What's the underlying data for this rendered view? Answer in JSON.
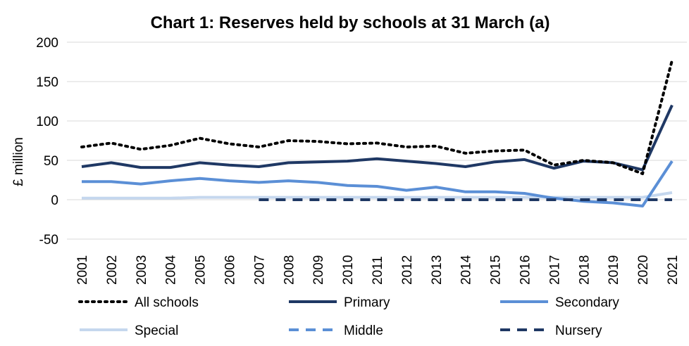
{
  "chart_data": {
    "type": "line",
    "title": "Chart 1: Reserves held by schools at 31 March (a)",
    "xlabel": "",
    "ylabel": "£ million",
    "ylim": [
      -50,
      200
    ],
    "yticks": [
      -50,
      0,
      50,
      100,
      150,
      200
    ],
    "grid": true,
    "legend_position": "bottom",
    "categories": [
      "2001",
      "2002",
      "2003",
      "2004",
      "2005",
      "2006",
      "2007",
      "2008",
      "2009",
      "2010",
      "2011",
      "2012",
      "2013",
      "2014",
      "2015",
      "2016",
      "2017",
      "2018",
      "2019",
      "2020",
      "2021"
    ],
    "series": [
      {
        "name": "All schools",
        "color": "#000000",
        "style": "dotted",
        "values": [
          67,
          72,
          64,
          69,
          78,
          71,
          67,
          75,
          74,
          71,
          72,
          67,
          68,
          59,
          62,
          63,
          44,
          50,
          47,
          33,
          177
        ]
      },
      {
        "name": "Primary",
        "color": "#1f3864",
        "style": "solid",
        "values": [
          42,
          47,
          41,
          41,
          47,
          44,
          42,
          47,
          48,
          49,
          52,
          49,
          46,
          42,
          48,
          51,
          40,
          49,
          47,
          38,
          120
        ]
      },
      {
        "name": "Secondary",
        "color": "#5b8fd6",
        "style": "solid",
        "values": [
          23,
          23,
          20,
          24,
          27,
          24,
          22,
          24,
          22,
          18,
          17,
          12,
          16,
          10,
          10,
          8,
          2,
          -2,
          -4,
          -8,
          49
        ]
      },
      {
        "name": "Special",
        "color": "#c5d7ee",
        "style": "solid",
        "values": [
          2,
          2,
          2,
          2,
          3,
          3,
          3,
          3,
          3,
          3,
          3,
          3,
          3,
          3,
          3,
          3,
          3,
          3,
          3,
          3,
          9
        ]
      },
      {
        "name": "Middle",
        "color": "#5b8fd6",
        "style": "dashed",
        "values": [
          null,
          null,
          null,
          null,
          null,
          null,
          null,
          null,
          null,
          null,
          null,
          null,
          null,
          null,
          null,
          null,
          null,
          null,
          null,
          null,
          null
        ]
      },
      {
        "name": "Nursery",
        "color": "#1f3864",
        "style": "dashed",
        "values": [
          null,
          null,
          null,
          null,
          null,
          null,
          0,
          0,
          0,
          0,
          0,
          0,
          0,
          0,
          0,
          0,
          0,
          0,
          0,
          0,
          0
        ]
      }
    ]
  }
}
